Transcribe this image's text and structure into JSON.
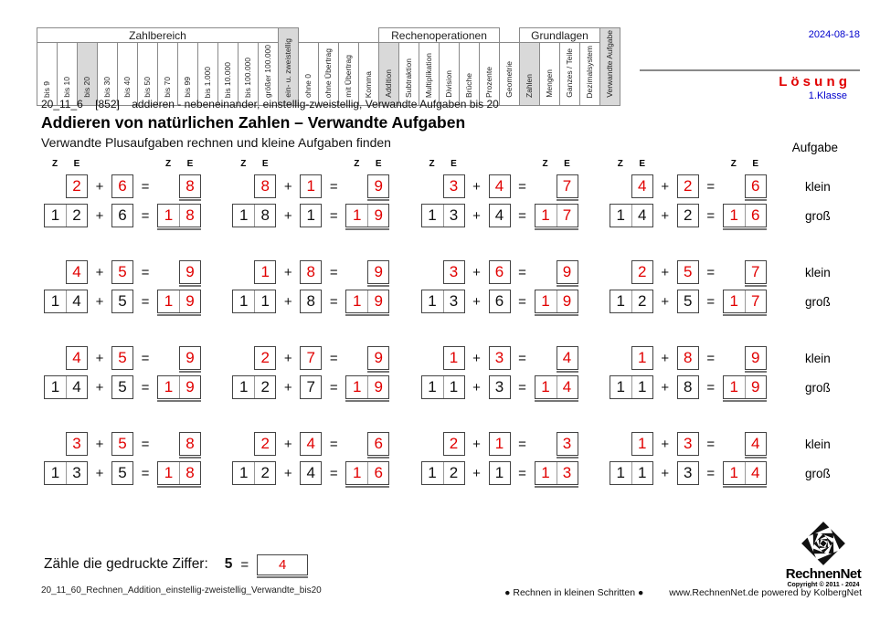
{
  "meta": {
    "date": "2024-08-18",
    "solution": "L ö s u n g",
    "grade": "1.Klasse"
  },
  "matrix": {
    "row1": [
      {
        "t": "group",
        "label": "Zahlbereich",
        "span": 12
      },
      {
        "t": "tall",
        "label": "ein- u. zweistellig",
        "active": true
      },
      {
        "t": "empty",
        "span": 4
      },
      {
        "t": "group",
        "label": "Rechenoperationen",
        "span": 6
      },
      {
        "t": "empty",
        "span": 1
      },
      {
        "t": "group",
        "label": "Grundlagen",
        "span": 4
      },
      {
        "t": "tall",
        "label": "Verwandte Aufgabe",
        "active": true
      }
    ],
    "row2": [
      {
        "label": "bis 9"
      },
      {
        "label": "bis 10"
      },
      {
        "label": "bis 20",
        "active": true
      },
      {
        "label": "bis 30"
      },
      {
        "label": "bis 40"
      },
      {
        "label": "bis 50"
      },
      {
        "label": "bis 70"
      },
      {
        "label": "bis 99"
      },
      {
        "label": "bis 1.000"
      },
      {
        "label": "bis 10.000"
      },
      {
        "label": "bis 100.000"
      },
      {
        "label": "größer 100.000"
      },
      {
        "label": "ohne 0"
      },
      {
        "label": "ohne Übertrag"
      },
      {
        "label": "mit Übertrag"
      },
      {
        "label": "Komma"
      },
      {
        "label": "Addition",
        "active": true
      },
      {
        "label": "Subtraktion"
      },
      {
        "label": "Multiplikation"
      },
      {
        "label": "Division"
      },
      {
        "label": "Brüche"
      },
      {
        "label": "Prozente"
      },
      {
        "label": "Geometrie"
      },
      {
        "label": "Zahlen",
        "active": true
      },
      {
        "label": "Mengen"
      },
      {
        "label": "Ganzes / Teile"
      },
      {
        "label": "Dezimalsystem"
      }
    ]
  },
  "title": {
    "code": "20_11_6",
    "ref": "[852]",
    "topic": "addieren - nebeneinander, einstellig-zweistellig, Verwandte Aufgaben bis 20",
    "heading": "Addieren von natürlichen Zahlen – Verwandte Aufgaben",
    "subtitle": "Verwandte Plusaufgaben rechnen und kleine Aufgaben finden"
  },
  "labels": {
    "aufgabe": "Aufgabe",
    "klein": "klein",
    "gross": "groß"
  },
  "ze": {
    "z": "Z",
    "e": "E"
  },
  "ops": {
    "plus": "+",
    "equals": "="
  },
  "problems": [
    {
      "ka": "2",
      "kb": "6",
      "ks": "8",
      "gt": "1",
      "go": "2",
      "gb": "6",
      "gst": "1",
      "gso": "8"
    },
    {
      "ka": "8",
      "kb": "1",
      "ks": "9",
      "gt": "1",
      "go": "8",
      "gb": "1",
      "gst": "1",
      "gso": "9"
    },
    {
      "ka": "3",
      "kb": "4",
      "ks": "7",
      "gt": "1",
      "go": "3",
      "gb": "4",
      "gst": "1",
      "gso": "7"
    },
    {
      "ka": "4",
      "kb": "2",
      "ks": "6",
      "gt": "1",
      "go": "4",
      "gb": "2",
      "gst": "1",
      "gso": "6"
    },
    {
      "ka": "4",
      "kb": "5",
      "ks": "9",
      "gt": "1",
      "go": "4",
      "gb": "5",
      "gst": "1",
      "gso": "9"
    },
    {
      "ka": "1",
      "kb": "8",
      "ks": "9",
      "gt": "1",
      "go": "1",
      "gb": "8",
      "gst": "1",
      "gso": "9"
    },
    {
      "ka": "3",
      "kb": "6",
      "ks": "9",
      "gt": "1",
      "go": "3",
      "gb": "6",
      "gst": "1",
      "gso": "9"
    },
    {
      "ka": "2",
      "kb": "5",
      "ks": "7",
      "gt": "1",
      "go": "2",
      "gb": "5",
      "gst": "1",
      "gso": "7"
    },
    {
      "ka": "4",
      "kb": "5",
      "ks": "9",
      "gt": "1",
      "go": "4",
      "gb": "5",
      "gst": "1",
      "gso": "9"
    },
    {
      "ka": "2",
      "kb": "7",
      "ks": "9",
      "gt": "1",
      "go": "2",
      "gb": "7",
      "gst": "1",
      "gso": "9"
    },
    {
      "ka": "1",
      "kb": "3",
      "ks": "4",
      "gt": "1",
      "go": "1",
      "gb": "3",
      "gst": "1",
      "gso": "4"
    },
    {
      "ka": "1",
      "kb": "8",
      "ks": "9",
      "gt": "1",
      "go": "1",
      "gb": "8",
      "gst": "1",
      "gso": "9"
    },
    {
      "ka": "3",
      "kb": "5",
      "ks": "8",
      "gt": "1",
      "go": "3",
      "gb": "5",
      "gst": "1",
      "gso": "8"
    },
    {
      "ka": "2",
      "kb": "4",
      "ks": "6",
      "gt": "1",
      "go": "2",
      "gb": "4",
      "gst": "1",
      "gso": "6"
    },
    {
      "ka": "2",
      "kb": "1",
      "ks": "3",
      "gt": "1",
      "go": "2",
      "gb": "1",
      "gst": "1",
      "gso": "3"
    },
    {
      "ka": "1",
      "kb": "3",
      "ks": "4",
      "gt": "1",
      "go": "1",
      "gb": "3",
      "gst": "1",
      "gso": "4"
    }
  ],
  "count_task": {
    "label": "Zähle die gedruckte Ziffer:",
    "digit": "5",
    "answer": "4"
  },
  "footer": {
    "filename": "20_11_60_Rechnen_Addition_einstellig-zweistellig_Verwandte_bis20",
    "slogan": "●  Rechnen in kleinen Schritten  ●",
    "site": "www.RechnenNet.de powered by KolbergNet"
  },
  "logo": {
    "name": "RechnenNet",
    "copyright": "Copyright © 2011 - 2024"
  }
}
